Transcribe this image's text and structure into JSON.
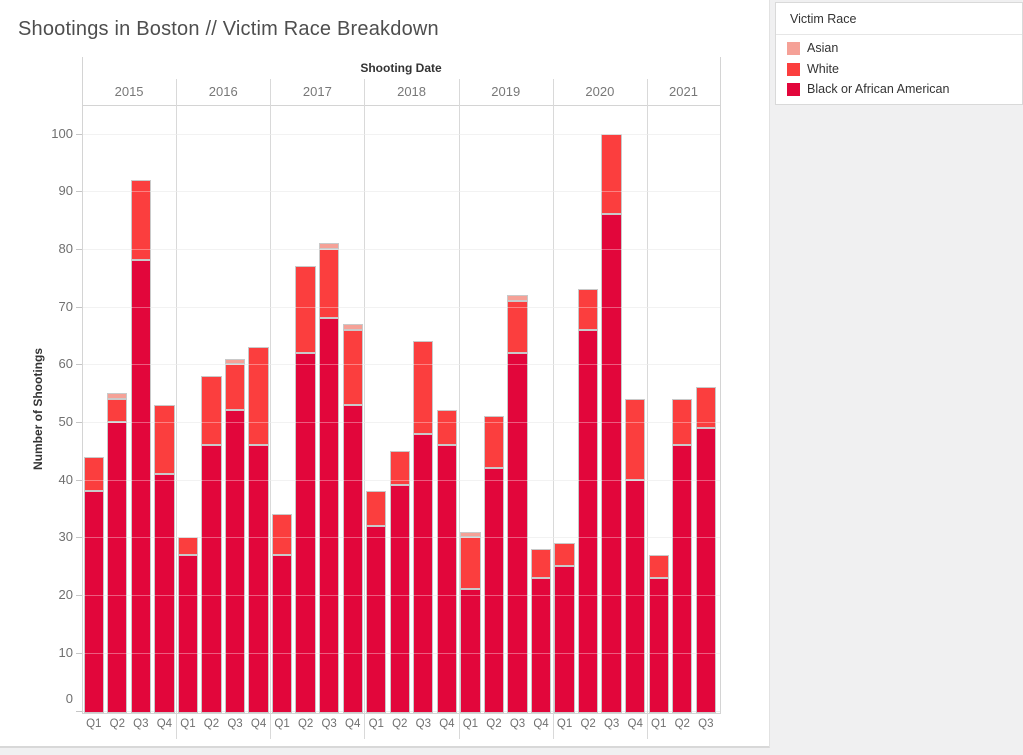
{
  "title": "Shootings in Boston // Victim Race Breakdown",
  "legend": {
    "title": "Victim Race",
    "items": [
      {
        "label": "Asian",
        "color": "#f5a197"
      },
      {
        "label": "White",
        "color": "#fb3e3e"
      },
      {
        "label": "Black or African American",
        "color": "#e2063b"
      }
    ]
  },
  "chart_data": {
    "type": "bar",
    "stacked": true,
    "title": "Shootings in Boston // Victim Race Breakdown",
    "xlabel": "Shooting Date",
    "ylabel": "Number of Shootings",
    "ylim": [
      0,
      105
    ],
    "yticks": [
      0,
      10,
      20,
      30,
      40,
      50,
      60,
      70,
      80,
      90,
      100
    ],
    "grid": true,
    "legend_position": "top-right",
    "years": [
      {
        "year": "2015",
        "quarters": [
          "Q1",
          "Q2",
          "Q3",
          "Q4"
        ]
      },
      {
        "year": "2016",
        "quarters": [
          "Q1",
          "Q2",
          "Q3",
          "Q4"
        ]
      },
      {
        "year": "2017",
        "quarters": [
          "Q1",
          "Q2",
          "Q3",
          "Q4"
        ]
      },
      {
        "year": "2018",
        "quarters": [
          "Q1",
          "Q2",
          "Q3",
          "Q4"
        ]
      },
      {
        "year": "2019",
        "quarters": [
          "Q1",
          "Q2",
          "Q3",
          "Q4"
        ]
      },
      {
        "year": "2020",
        "quarters": [
          "Q1",
          "Q2",
          "Q3",
          "Q4"
        ]
      },
      {
        "year": "2021",
        "quarters": [
          "Q1",
          "Q2",
          "Q3"
        ]
      }
    ],
    "series": [
      {
        "name": "Black or African American",
        "color": "#e2063b",
        "values": [
          [
            38,
            50,
            78,
            41
          ],
          [
            27,
            46,
            52,
            46
          ],
          [
            27,
            62,
            68,
            53
          ],
          [
            32,
            39,
            48,
            46
          ],
          [
            21,
            42,
            62,
            23
          ],
          [
            25,
            66,
            86,
            40
          ],
          [
            23,
            46,
            49
          ]
        ]
      },
      {
        "name": "White",
        "color": "#fb3e3e",
        "values": [
          [
            6,
            4,
            14,
            12
          ],
          [
            3,
            12,
            8,
            17
          ],
          [
            7,
            15,
            12,
            13
          ],
          [
            6,
            6,
            16,
            6
          ],
          [
            9,
            9,
            9,
            5
          ],
          [
            4,
            7,
            14,
            14
          ],
          [
            4,
            8,
            7
          ]
        ]
      },
      {
        "name": "Asian",
        "color": "#f5a197",
        "values": [
          [
            0,
            1,
            0,
            0
          ],
          [
            0,
            0,
            1,
            0
          ],
          [
            0,
            0,
            1,
            1
          ],
          [
            0,
            0,
            0,
            0
          ],
          [
            1,
            0,
            1,
            0
          ],
          [
            0,
            0,
            0,
            0
          ],
          [
            0,
            0,
            0
          ]
        ]
      }
    ],
    "totals": [
      [
        44,
        55,
        92,
        53
      ],
      [
        30,
        58,
        61,
        63
      ],
      [
        34,
        77,
        81,
        67
      ],
      [
        38,
        45,
        64,
        52
      ],
      [
        31,
        51,
        72,
        28
      ],
      [
        29,
        73,
        100,
        54
      ],
      [
        27,
        54,
        56
      ]
    ]
  }
}
